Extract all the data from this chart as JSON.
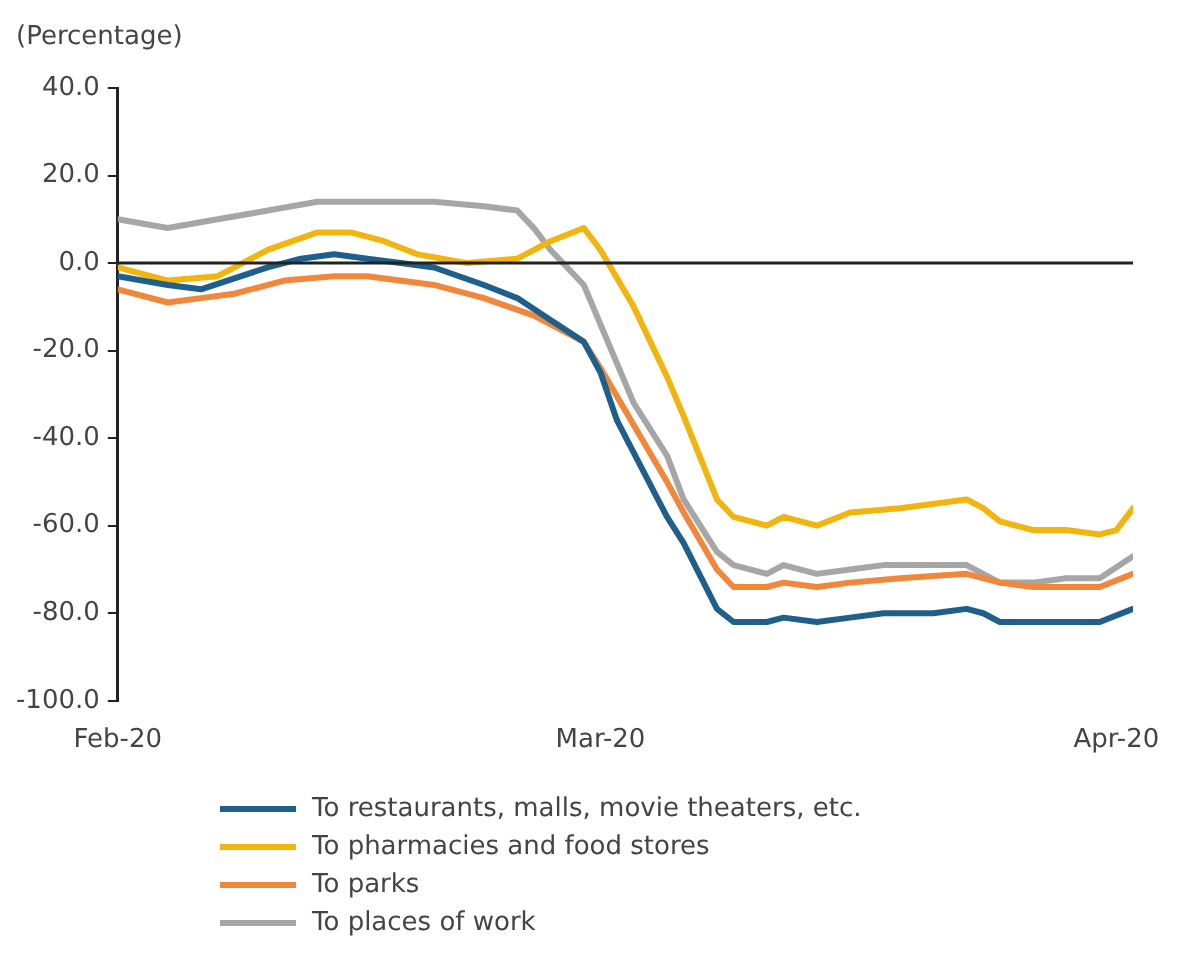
{
  "chart_data": {
    "type": "line",
    "ylabel": "(Percentage)",
    "xlim": [
      "2020-02-01",
      "2020-04-02"
    ],
    "xticks": [
      {
        "value": "2020-02-01",
        "label": "Feb-20"
      },
      {
        "value": "2020-03-01",
        "label": "Mar-20"
      },
      {
        "value": "2020-04-01",
        "label": "Apr-20"
      }
    ],
    "ylim": [
      -100,
      40
    ],
    "yticks": [
      {
        "value": -100,
        "label": "-100.0"
      },
      {
        "value": -80,
        "label": "-80.0"
      },
      {
        "value": -60,
        "label": "-60.0"
      },
      {
        "value": -40,
        "label": "-40.0"
      },
      {
        "value": -20,
        "label": "-20.0"
      },
      {
        "value": 0,
        "label": "0.0"
      },
      {
        "value": 20,
        "label": "20.0"
      },
      {
        "value": 40,
        "label": "40.0"
      }
    ],
    "ref_lines": [
      {
        "axis": "y",
        "value": 0,
        "color": "#222222"
      }
    ],
    "grid": false,
    "legend": "bottom",
    "series": [
      {
        "name": "To restaurants, malls, movie theaters, etc.",
        "color": "#1f5f8b",
        "x": [
          "2020-02-01",
          "2020-02-04",
          "2020-02-06",
          "2020-02-10",
          "2020-02-12",
          "2020-02-14",
          "2020-02-16",
          "2020-02-18",
          "2020-02-20",
          "2020-02-23",
          "2020-02-25",
          "2020-02-27",
          "2020-02-29",
          "2020-03-01",
          "2020-03-02",
          "2020-03-05",
          "2020-03-06",
          "2020-03-08",
          "2020-03-09",
          "2020-03-11",
          "2020-03-12",
          "2020-03-14",
          "2020-03-16",
          "2020-03-18",
          "2020-03-21",
          "2020-03-23",
          "2020-03-24",
          "2020-03-25",
          "2020-03-27",
          "2020-03-31",
          "2020-04-02"
        ],
        "values": [
          -3,
          -5,
          -6,
          -1,
          1,
          2,
          1,
          0,
          -1,
          -5,
          -8,
          -13,
          -18,
          -25,
          -36,
          -58,
          -64,
          -79,
          -82,
          -82,
          -81,
          -82,
          -81,
          -80,
          -80,
          -79,
          -80,
          -82,
          -82,
          -82,
          -79
        ]
      },
      {
        "name": "To pharmacies and food stores",
        "color": "#f2b50f",
        "x": [
          "2020-02-01",
          "2020-02-04",
          "2020-02-07",
          "2020-02-10",
          "2020-02-13",
          "2020-02-15",
          "2020-02-17",
          "2020-02-19",
          "2020-02-22",
          "2020-02-25",
          "2020-02-27",
          "2020-02-29",
          "2020-03-01",
          "2020-03-03",
          "2020-03-05",
          "2020-03-06",
          "2020-03-08",
          "2020-03-09",
          "2020-03-11",
          "2020-03-12",
          "2020-03-14",
          "2020-03-16",
          "2020-03-19",
          "2020-03-23",
          "2020-03-24",
          "2020-03-25",
          "2020-03-27",
          "2020-03-29",
          "2020-03-31",
          "2020-04-01",
          "2020-04-02"
        ],
        "values": [
          -1,
          -4,
          -3,
          3,
          7,
          7,
          5,
          2,
          0,
          1,
          5,
          8,
          3,
          -10,
          -26,
          -35,
          -54,
          -58,
          -60,
          -58,
          -60,
          -57,
          -56,
          -54,
          -56,
          -59,
          -61,
          -61,
          -62,
          -61,
          -56
        ]
      },
      {
        "name": "To parks",
        "color": "#f0873a",
        "x": [
          "2020-02-01",
          "2020-02-04",
          "2020-02-06",
          "2020-02-08",
          "2020-02-11",
          "2020-02-14",
          "2020-02-16",
          "2020-02-20",
          "2020-02-23",
          "2020-02-26",
          "2020-02-29",
          "2020-03-01",
          "2020-03-05",
          "2020-03-06",
          "2020-03-08",
          "2020-03-09",
          "2020-03-11",
          "2020-03-12",
          "2020-03-14",
          "2020-03-16",
          "2020-03-19",
          "2020-03-23",
          "2020-03-25",
          "2020-03-27",
          "2020-03-29",
          "2020-03-31",
          "2020-04-02"
        ],
        "values": [
          -6,
          -9,
          -8,
          -7,
          -4,
          -3,
          -3,
          -5,
          -8,
          -12,
          -18,
          -24,
          -50,
          -57,
          -70,
          -74,
          -74,
          -73,
          -74,
          -73,
          -72,
          -71,
          -73,
          -74,
          -74,
          -74,
          -71
        ]
      },
      {
        "name": "To places of work",
        "color": "#a6a6a6",
        "x": [
          "2020-02-01",
          "2020-02-04",
          "2020-02-07",
          "2020-02-10",
          "2020-02-13",
          "2020-02-20",
          "2020-02-23",
          "2020-02-25",
          "2020-02-26",
          "2020-02-27",
          "2020-02-29",
          "2020-03-02",
          "2020-03-03",
          "2020-03-05",
          "2020-03-06",
          "2020-03-08",
          "2020-03-09",
          "2020-03-11",
          "2020-03-12",
          "2020-03-14",
          "2020-03-16",
          "2020-03-18",
          "2020-03-21",
          "2020-03-23",
          "2020-03-25",
          "2020-03-27",
          "2020-03-29",
          "2020-03-31",
          "2020-04-02"
        ],
        "values": [
          10,
          8,
          10,
          12,
          14,
          14,
          13,
          12,
          8,
          3,
          -5,
          -23,
          -32,
          -44,
          -54,
          -66,
          -69,
          -71,
          -69,
          -71,
          -70,
          -69,
          -69,
          -69,
          -73,
          -73,
          -72,
          -72,
          -67
        ]
      }
    ]
  }
}
